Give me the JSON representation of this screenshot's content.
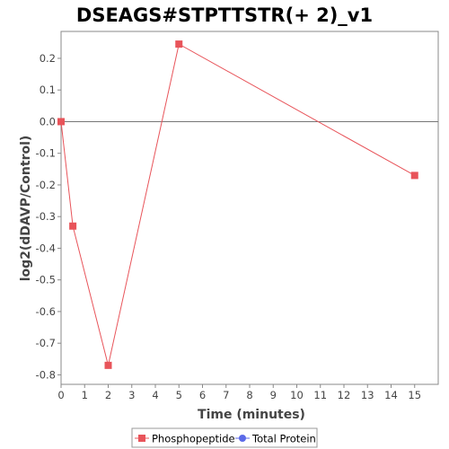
{
  "chart_data": {
    "type": "line",
    "title": "DSEAGS#STPTTSTR(+ 2)_v1",
    "xlabel": "Time (minutes)",
    "ylabel": "log2(dDAVP/Control)",
    "xlim": [
      0,
      16
    ],
    "ylim": [
      -0.83,
      0.285
    ],
    "x_ticks": [
      0,
      1,
      2,
      3,
      4,
      5,
      6,
      7,
      8,
      9,
      10,
      11,
      12,
      13,
      14,
      15
    ],
    "y_ticks": [
      0.2,
      0.1,
      0.0,
      -0.1,
      -0.2,
      -0.3,
      -0.4,
      -0.5,
      -0.6,
      -0.7,
      -0.8
    ],
    "y_tick_labels": [
      "0.2",
      "0.1",
      "0.0",
      "-0.1",
      "-0.2",
      "-0.3",
      "-0.4",
      "-0.5",
      "-0.6",
      "-0.7",
      "-0.8"
    ],
    "grid": false,
    "legend_position": "bottom-center",
    "series": [
      {
        "name": "Phosphopeptide",
        "color": "#e8545a",
        "marker": "square",
        "x": [
          0,
          0.5,
          2,
          5,
          15
        ],
        "values": [
          0.0,
          -0.33,
          -0.77,
          0.245,
          -0.17
        ]
      },
      {
        "name": "Total Protein",
        "color": "#5b6ae8",
        "marker": "circle",
        "x": [],
        "values": []
      }
    ]
  }
}
